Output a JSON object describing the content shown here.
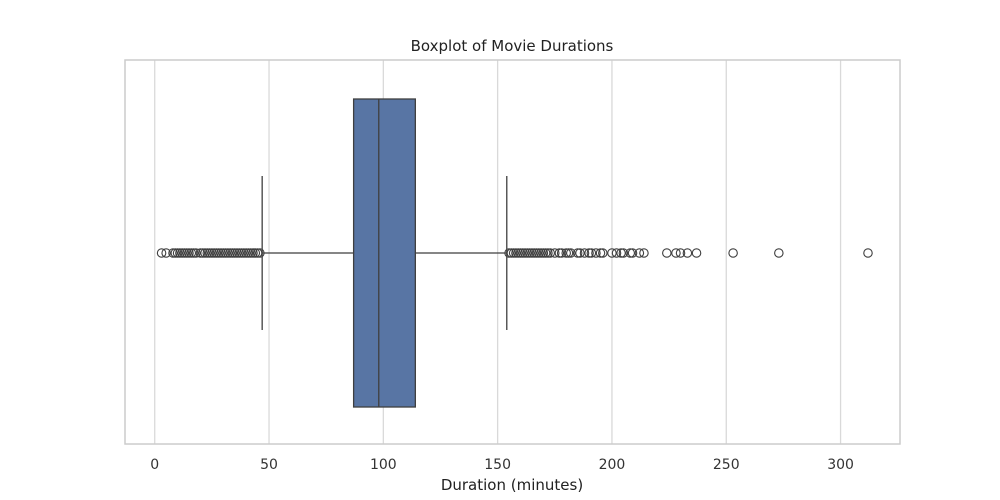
{
  "chart_data": {
    "type": "boxplot",
    "title": "Boxplot of Movie Durations",
    "xlabel": "Duration (minutes)",
    "ylabel": "",
    "xlim": [
      -13,
      326
    ],
    "xticks": [
      0,
      50,
      100,
      150,
      200,
      250,
      300
    ],
    "grid": true,
    "legend": "none",
    "box": {
      "whisker_low": 47,
      "q1": 87,
      "median": 98,
      "q3": 114,
      "whisker_high": 154,
      "fill_color": "#5875a4",
      "line_color": "#3f3f3f"
    },
    "outliers": [
      3,
      5,
      8,
      9,
      10,
      11,
      12,
      13,
      14,
      15,
      16,
      17,
      18,
      20,
      21,
      22,
      23,
      24,
      25,
      26,
      27,
      28,
      29,
      30,
      31,
      32,
      33,
      34,
      35,
      36,
      37,
      38,
      39,
      40,
      41,
      42,
      43,
      44,
      45,
      46,
      155,
      156,
      157,
      158,
      159,
      160,
      161,
      162,
      163,
      164,
      165,
      166,
      167,
      168,
      169,
      170,
      171,
      172,
      173,
      175,
      177,
      178,
      180,
      181,
      182,
      185,
      186,
      188,
      190,
      191,
      193,
      195,
      196,
      200,
      202,
      204,
      205,
      208,
      209,
      212,
      214,
      224,
      228,
      230,
      233,
      237,
      253,
      273,
      312
    ]
  }
}
